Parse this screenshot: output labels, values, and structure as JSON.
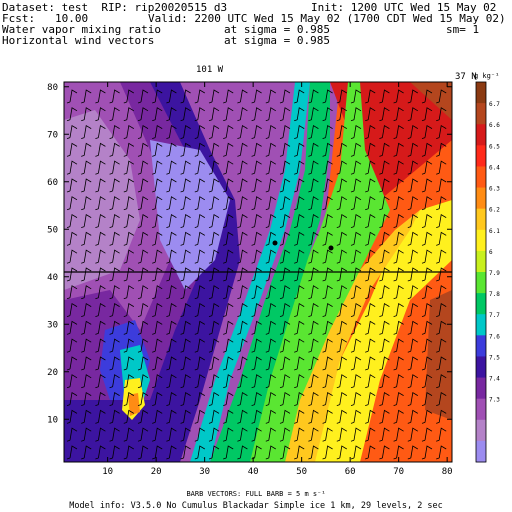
{
  "header": {
    "dataset": "Dataset: test  RIP: rip20020515 d3",
    "init": "Init: 1200 UTC Wed 15 May 02",
    "fcst": "Fcst:   10.00",
    "valid": "Valid: 2200 UTC Wed 15 May 02 (1700 CDT Wed 15 May 02)",
    "field1": "Water vapor mixing ratio",
    "field1_level": "at sigma = 0.985",
    "sm": "sm= 1",
    "field2": "Horizontal wind vectors",
    "field2_level": "at sigma = 0.985"
  },
  "map_labels": {
    "lon_label": "101 W",
    "lat_label": "37 N"
  },
  "footer": {
    "barb_line": "BARB VECTORS:  FULL BARB = 5 m s⁻¹",
    "model_info": "Model info: V3.5.0 No Cumulus Blackadar  Simple ice    1 km,  29 levels,     2 sec"
  },
  "colorbar": {
    "unit": "g kg⁻¹",
    "ticks": [
      "6.7",
      "6.6",
      "6.5",
      "6.4",
      "6.3",
      "6.2",
      "6.1",
      "6",
      "7.9",
      "7.8",
      "7.7",
      "7.6",
      "7.5",
      "7.4",
      "7.3"
    ],
    "colors": [
      "#8b3a12",
      "#b4461e",
      "#d61a1a",
      "#ff2a1a",
      "#ff5a14",
      "#ff8c14",
      "#ffc81e",
      "#fff01e",
      "#c8f01e",
      "#5ae632",
      "#00c864",
      "#00c8c8",
      "#3c3cdc",
      "#3c14a0",
      "#7828a0",
      "#a050b4",
      "#b482c8",
      "#9c8cf0"
    ]
  },
  "chart_data": {
    "type": "heatmap",
    "title": "Water vapor mixing ratio at sigma = 0.985",
    "x_ticks": [
      10,
      20,
      30,
      40,
      50,
      60,
      70,
      80
    ],
    "y_ticks": [
      10,
      20,
      30,
      40,
      50,
      60,
      70,
      80
    ],
    "xlim": [
      1,
      81
    ],
    "ylim": [
      1,
      81
    ],
    "grid": false,
    "lat_line_y": 41,
    "lon_line_x": 34,
    "series": []
  }
}
